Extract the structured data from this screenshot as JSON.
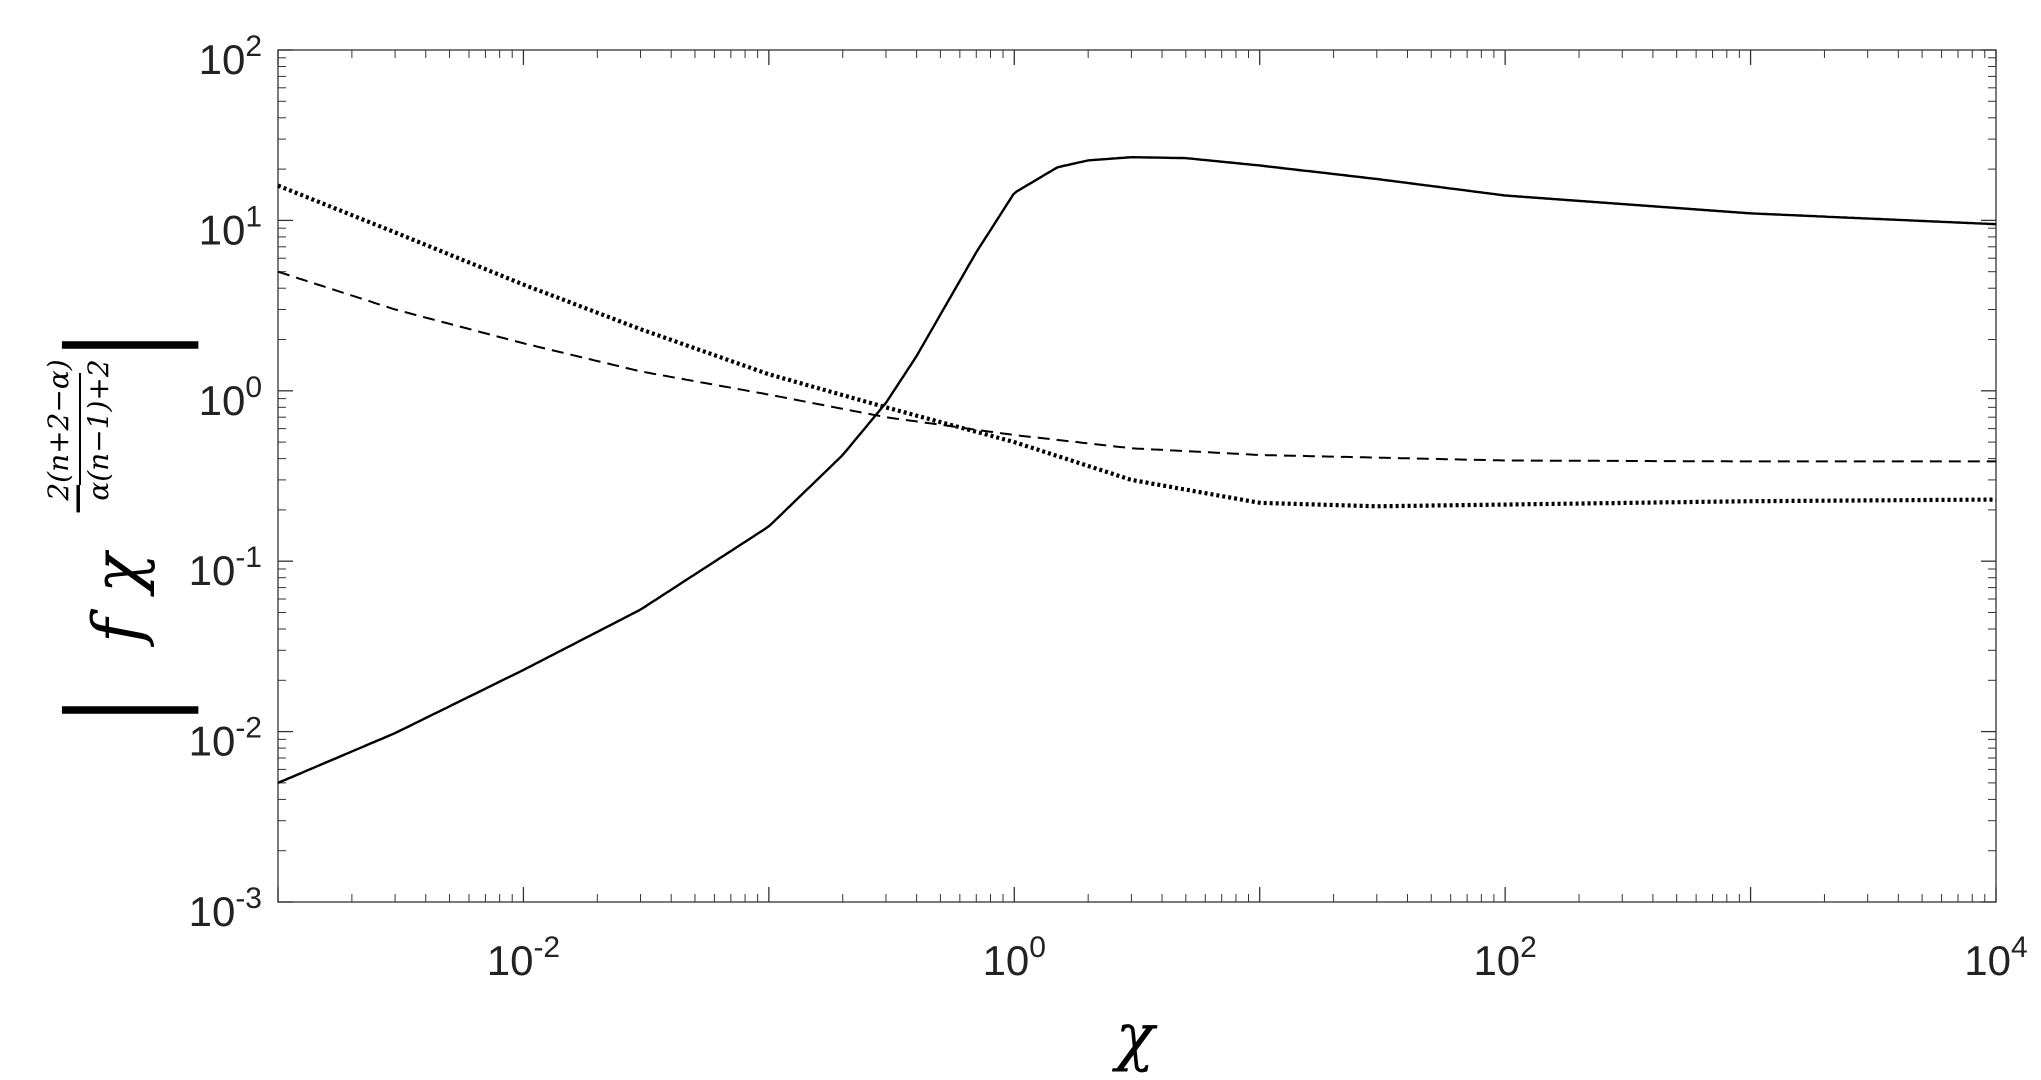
{
  "chart_data": {
    "type": "line",
    "title": "",
    "xlabel": "χ",
    "ylabel": "|f χ^(−2(n+2−α)/(α(n−1)+2))|",
    "ylabel_parts": {
      "f": "f",
      "chi": "χ",
      "minus": "−",
      "num": "2(n+2−α)",
      "den": "α(n−1)+2"
    },
    "xscale": "log",
    "yscale": "log",
    "xlim": [
      0.001,
      10000
    ],
    "ylim": [
      0.001,
      100
    ],
    "grid": false,
    "legend": "none",
    "x_ticks": [
      {
        "value": 0.01,
        "base": "10",
        "exp": "-2"
      },
      {
        "value": 1,
        "base": "10",
        "exp": "0"
      },
      {
        "value": 100,
        "base": "10",
        "exp": "2"
      },
      {
        "value": 10000,
        "base": "10",
        "exp": "4"
      }
    ],
    "y_ticks": [
      {
        "value": 0.001,
        "base": "10",
        "exp": "-3"
      },
      {
        "value": 0.01,
        "base": "10",
        "exp": "-2"
      },
      {
        "value": 0.1,
        "base": "10",
        "exp": "-1"
      },
      {
        "value": 1,
        "base": "10",
        "exp": "0"
      },
      {
        "value": 10,
        "base": "10",
        "exp": "1"
      },
      {
        "value": 100,
        "base": "10",
        "exp": "2"
      }
    ],
    "series": [
      {
        "style": "solid",
        "color": "#000000",
        "x": [
          0.001,
          0.003,
          0.01,
          0.03,
          0.1,
          0.2,
          0.3,
          0.4,
          0.5,
          0.7,
          1,
          1.5,
          2,
          3,
          5,
          10,
          30,
          100,
          1000,
          10000
        ],
        "y": [
          0.005,
          0.0098,
          0.023,
          0.052,
          0.16,
          0.42,
          0.85,
          1.6,
          2.8,
          6.5,
          14.5,
          20.5,
          22.5,
          23.5,
          23.2,
          21,
          17.5,
          14,
          11,
          9.5
        ]
      },
      {
        "style": "dashed",
        "color": "#000000",
        "x": [
          0.001,
          0.003,
          0.01,
          0.03,
          0.1,
          0.3,
          1,
          3,
          10,
          100,
          1000,
          10000
        ],
        "y": [
          5,
          3,
          1.9,
          1.3,
          0.95,
          0.7,
          0.55,
          0.46,
          0.42,
          0.39,
          0.385,
          0.385
        ]
      },
      {
        "style": "dotted",
        "color": "#000000",
        "x": [
          0.001,
          0.003,
          0.01,
          0.03,
          0.1,
          0.3,
          1,
          3,
          10,
          30,
          100,
          1000,
          10000
        ],
        "y": [
          16,
          8.5,
          4.2,
          2.3,
          1.25,
          0.8,
          0.5,
          0.3,
          0.22,
          0.21,
          0.215,
          0.225,
          0.23
        ]
      }
    ]
  }
}
